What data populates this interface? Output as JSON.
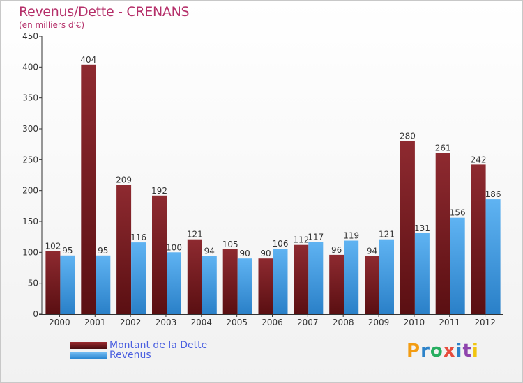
{
  "chart_data": {
    "type": "bar",
    "title": "Revenus/Dette - CRENANS",
    "subtitle": "(en milliers d'€)",
    "xlabel": "",
    "ylabel": "",
    "ylim": [
      0,
      450
    ],
    "yticks": [
      "0",
      "50",
      "100",
      "150",
      "200",
      "250",
      "300",
      "350",
      "400",
      "450"
    ],
    "categories": [
      "2000",
      "2001",
      "2002",
      "2003",
      "2004",
      "2005",
      "2006",
      "2007",
      "2008",
      "2009",
      "2010",
      "2011",
      "2012"
    ],
    "series": [
      {
        "name": "Montant de la Dette",
        "color": "#7a1e22",
        "values": [
          102,
          404,
          209,
          192,
          121,
          105,
          90,
          112,
          96,
          94,
          280,
          261,
          242
        ]
      },
      {
        "name": "Revenus",
        "color": "#3d9be0",
        "values": [
          95,
          95,
          116,
          100,
          94,
          90,
          106,
          117,
          119,
          121,
          131,
          156,
          186
        ]
      }
    ],
    "legend": "bottom-left",
    "grid": false
  },
  "brand": {
    "logo_letters": [
      "P",
      "r",
      "o",
      "x",
      "i",
      "t",
      "i"
    ],
    "logo_colors": [
      "#f39c12",
      "#2c82c9",
      "#27ae60",
      "#e74c3c",
      "#2c82c9",
      "#8e44ad",
      "#f1c40f"
    ]
  }
}
